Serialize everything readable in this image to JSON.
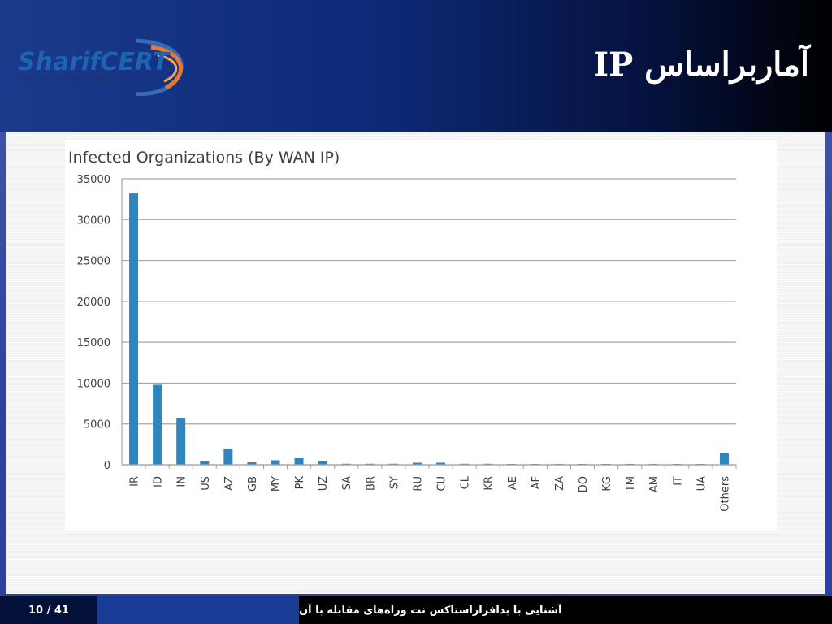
{
  "slide": {
    "title": "آماربراساس IP",
    "logo_text": "SharifCERT",
    "logo_tagline": "Security Services & Solutions",
    "page_number": "10 / 41",
    "footer_text": "آشنایی با بدافزاراستاکس نت وراه‌های مقابله با آن"
  },
  "colors": {
    "bar": "#2e86c1",
    "grid": "#a6a6a6",
    "logo_primary": "#1f63b3",
    "logo_accent": "#e8782a"
  },
  "chart_data": {
    "type": "bar",
    "title": "Infected Organizations (By WAN IP)",
    "xlabel": "",
    "ylabel": "",
    "ylim": [
      0,
      35000
    ],
    "yticks": [
      0,
      5000,
      10000,
      15000,
      20000,
      25000,
      30000,
      35000
    ],
    "grid": true,
    "categories": [
      "IR",
      "ID",
      "IN",
      "US",
      "AZ",
      "GB",
      "MY",
      "PK",
      "UZ",
      "SA",
      "BR",
      "SY",
      "RU",
      "CU",
      "CL",
      "KR",
      "AE",
      "AF",
      "ZA",
      "DO",
      "KG",
      "TM",
      "AM",
      "IT",
      "UA",
      "Others"
    ],
    "values": [
      33200,
      9800,
      5700,
      400,
      1900,
      300,
      550,
      800,
      400,
      120,
      120,
      120,
      250,
      250,
      120,
      120,
      100,
      100,
      100,
      100,
      100,
      100,
      100,
      100,
      100,
      1400
    ]
  }
}
